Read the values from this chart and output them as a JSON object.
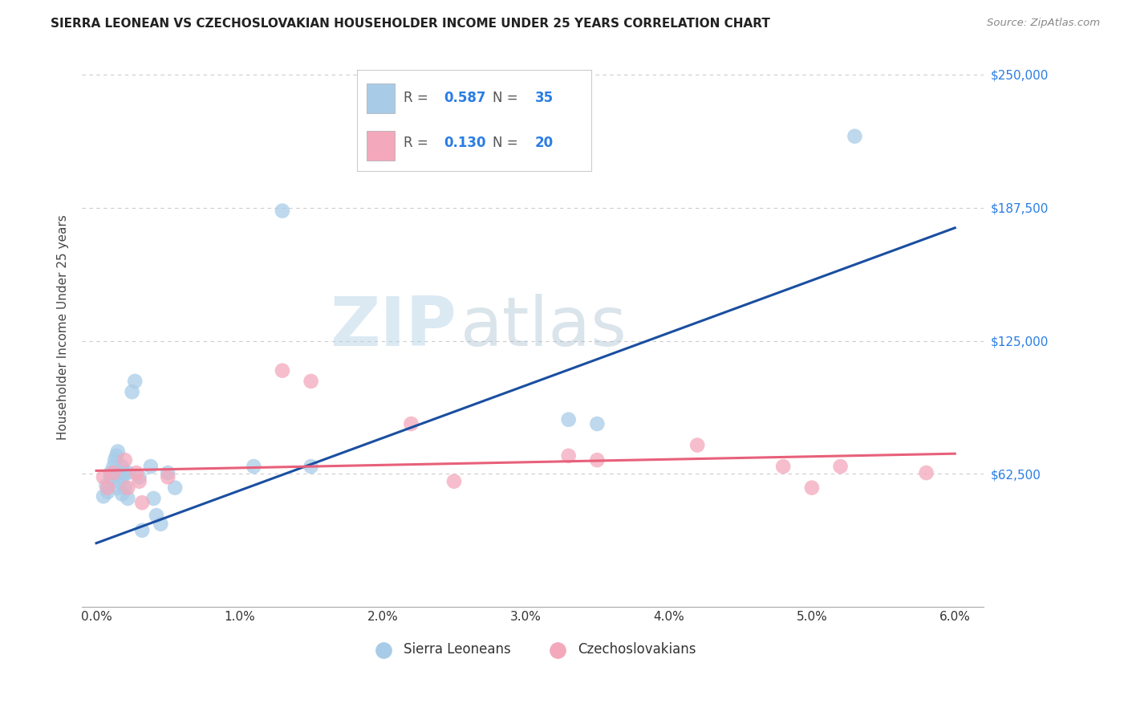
{
  "title": "SIERRA LEONEAN VS CZECHOSLOVAKIAN HOUSEHOLDER INCOME UNDER 25 YEARS CORRELATION CHART",
  "source": "Source: ZipAtlas.com",
  "ylabel": "Householder Income Under 25 years",
  "xlabel_ticks": [
    "0.0%",
    "1.0%",
    "2.0%",
    "3.0%",
    "4.0%",
    "5.0%",
    "6.0%"
  ],
  "xlabel_vals": [
    0.0,
    0.01,
    0.02,
    0.03,
    0.04,
    0.05,
    0.06
  ],
  "ytick_vals": [
    0,
    62500,
    125000,
    187500,
    250000
  ],
  "ytick_labels": [
    "",
    "$62,500",
    "$125,000",
    "$187,500",
    "$250,000"
  ],
  "ylim": [
    0,
    262500
  ],
  "xlim": [
    -0.001,
    0.062
  ],
  "blue_R": "0.587",
  "blue_N": "35",
  "pink_R": "0.130",
  "pink_N": "20",
  "blue_color": "#a8cce8",
  "pink_color": "#f4a8bc",
  "blue_line_color": "#1a4fa0",
  "pink_line_color": "#e8607a",
  "watermark_zip": "ZIP",
  "watermark_atlas": "atlas",
  "legend_label_blue": "Sierra Leoneans",
  "legend_label_pink": "Czechoslovakians",
  "blue_x": [
    0.0005,
    0.0007,
    0.0008,
    0.001,
    0.001,
    0.0012,
    0.0013,
    0.0014,
    0.0015,
    0.0015,
    0.0016,
    0.0017,
    0.0018,
    0.0018,
    0.0018,
    0.002,
    0.002,
    0.0022,
    0.0022,
    0.0025,
    0.0027,
    0.003,
    0.0032,
    0.0038,
    0.004,
    0.0042,
    0.0045,
    0.005,
    0.0055,
    0.011,
    0.013,
    0.015,
    0.033,
    0.035,
    0.053
  ],
  "blue_y": [
    52000,
    57000,
    54000,
    61000,
    63000,
    66000,
    69000,
    71000,
    73000,
    56000,
    59000,
    63000,
    66000,
    61000,
    53000,
    63000,
    56000,
    63000,
    51000,
    101000,
    106000,
    61000,
    36000,
    66000,
    51000,
    43000,
    39000,
    63000,
    56000,
    66000,
    186000,
    66000,
    88000,
    86000,
    221000
  ],
  "pink_x": [
    0.0005,
    0.0008,
    0.0012,
    0.002,
    0.0022,
    0.0028,
    0.003,
    0.0032,
    0.005,
    0.013,
    0.015,
    0.022,
    0.025,
    0.033,
    0.035,
    0.042,
    0.048,
    0.05,
    0.052,
    0.058
  ],
  "pink_y": [
    61000,
    56000,
    63000,
    69000,
    56000,
    63000,
    59000,
    49000,
    61000,
    111000,
    106000,
    86000,
    59000,
    71000,
    69000,
    76000,
    66000,
    56000,
    66000,
    63000
  ],
  "blue_line_x": [
    0.0,
    0.06
  ],
  "blue_line_y": [
    30000,
    178000
  ],
  "pink_line_x": [
    0.0,
    0.06
  ],
  "pink_line_y": [
    64000,
    72000
  ],
  "rvalue_color": "#2b7de3",
  "legend_text_color": "#555555",
  "grid_color": "#cccccc",
  "spine_color": "#aaaaaa",
  "title_color": "#222222",
  "source_color": "#888888",
  "ylabel_color": "#444444"
}
